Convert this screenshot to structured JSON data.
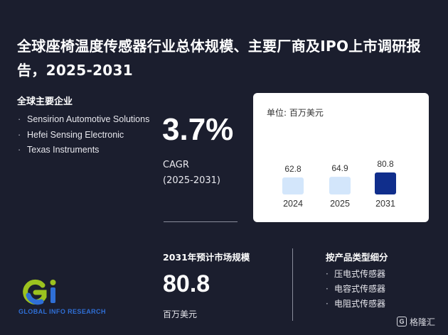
{
  "title": "全球座椅温度传感器行业总体规模、主要厂商及IPO上市调研报告，2025-2031",
  "companies": {
    "heading": "全球主要企业",
    "items": [
      "Sensirion Automotive Solutions",
      "Hefei Sensing Electronic",
      "Texas Instruments"
    ]
  },
  "cagr": {
    "value": "3.7%",
    "label_line1": "CAGR",
    "label_line2": "(2025-2031)"
  },
  "chart_data": {
    "type": "bar",
    "unit": "单位: 百万美元",
    "categories": [
      "2024",
      "2025",
      "2031"
    ],
    "values": [
      62.8,
      64.9,
      80.8
    ],
    "value_labels": [
      "62.8",
      "64.9",
      "80.8"
    ],
    "colors": [
      "#d3e6fb",
      "#d3e6fb",
      "#102e8c"
    ],
    "grid": false,
    "legend": "none"
  },
  "market": {
    "heading": "2031年预计市场规模",
    "value": "80.8",
    "unit": "百万美元"
  },
  "product_types": {
    "heading": "按产品类型细分",
    "items": [
      "压电式传感器",
      "电容式传感器",
      "电阻式传感器"
    ]
  },
  "logo": {
    "text": "GLOBAL INFO RESEARCH"
  },
  "badge": {
    "label": "格隆汇",
    "icon": "G"
  },
  "colors": {
    "background": "#1b1e2e",
    "accent_dark": "#102e8c",
    "accent_light": "#d3e6fb",
    "logo_green": "#9cc21f",
    "logo_blue": "#2f6fd6"
  }
}
